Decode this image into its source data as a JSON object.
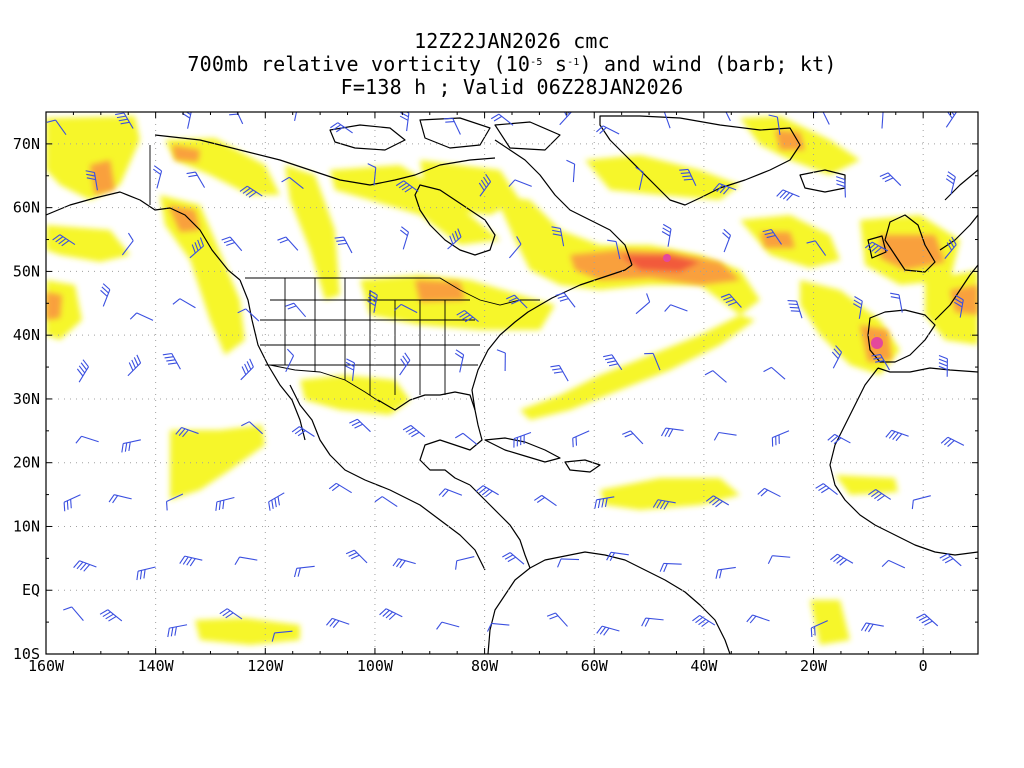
{
  "title": {
    "line1": "12Z22JAN2026 cmc",
    "line2_pre": "700mb relative vorticity (10",
    "line2_exp1": "-5",
    "line2_mid": " s",
    "line2_exp2": "-1",
    "line2_post": ") and wind (barb; kt)",
    "line3": "F=138 h ; Valid 06Z28JAN2026"
  },
  "axes": {
    "lon_labels": [
      "160W",
      "140W",
      "120W",
      "100W",
      "80W",
      "60W",
      "40W",
      "20W",
      "0"
    ],
    "lon_values": [
      -160,
      -140,
      -120,
      -100,
      -80,
      -60,
      -40,
      -20,
      0
    ],
    "lat_labels": [
      "70N",
      "60N",
      "50N",
      "40N",
      "30N",
      "20N",
      "10N",
      "EQ",
      "10S"
    ],
    "lat_values": [
      70,
      60,
      50,
      40,
      30,
      20,
      10,
      0,
      -10
    ],
    "lon_range": [
      -160,
      10
    ],
    "lat_range": [
      -10,
      75
    ]
  },
  "colors": {
    "shade_yellow": "#f6f62a",
    "shade_light_orange": "#fcd46a",
    "shade_orange": "#f9a03c",
    "shade_red": "#f25a3a",
    "shade_magenta": "#e4489c",
    "coast": "#000000",
    "barb": "#3a4fe0",
    "grid": "#9a9a9a"
  }
}
